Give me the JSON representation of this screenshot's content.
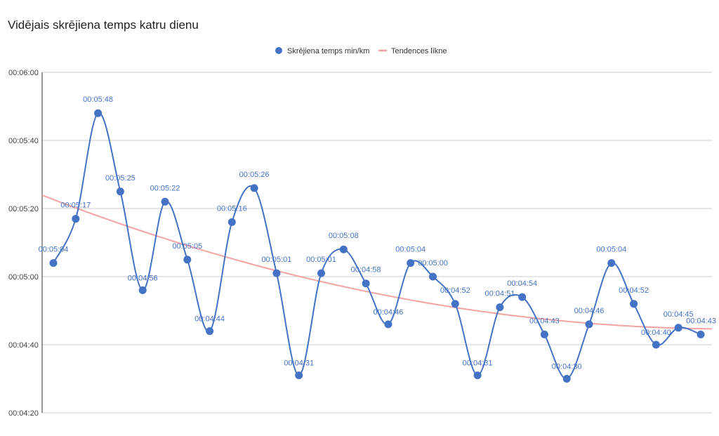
{
  "chart_data": {
    "type": "line",
    "title": "Vidējais skrējiena temps katru dienu",
    "xlabel": "",
    "ylabel": "",
    "ylim_seconds": [
      260,
      360
    ],
    "y_ticks": [
      "00:04:20",
      "00:04:40",
      "00:05:00",
      "00:05:20",
      "00:05:40",
      "00:06:00"
    ],
    "grid": true,
    "legend_position": "top",
    "series": [
      {
        "name": "Skrējiena temps min/km",
        "color": "#4472c4",
        "values_seconds": [
          304,
          317,
          348,
          325,
          296,
          322,
          305,
          284,
          316,
          326,
          301,
          271,
          301,
          308,
          298,
          286,
          304,
          300,
          292,
          271,
          291,
          294,
          283,
          270,
          286,
          304,
          292,
          280,
          285,
          283
        ],
        "labels": [
          "00:05:04",
          "00:05:17",
          "00:05:48",
          "00:05:25",
          "00:04:56",
          "00:05:22",
          "00:05:05",
          "00:04:44",
          "00:05:16",
          "00:05:26",
          "00:05:01",
          "00:04:31",
          "00:05:01",
          "00:05:08",
          "00:04:58",
          "00:04:46",
          "00:05:04",
          "00:05:00",
          "00:04:52",
          "00:04:31",
          "00:04:51",
          "00:04:54",
          "00:04:43",
          "00:04:30",
          "00:04:46",
          "00:05:04",
          "00:04:52",
          "00:04:40",
          "00:04:45",
          "00:04:43"
        ]
      },
      {
        "name": "Tendences līkne",
        "color": "#f4a3a3",
        "type": "trendline"
      }
    ]
  }
}
